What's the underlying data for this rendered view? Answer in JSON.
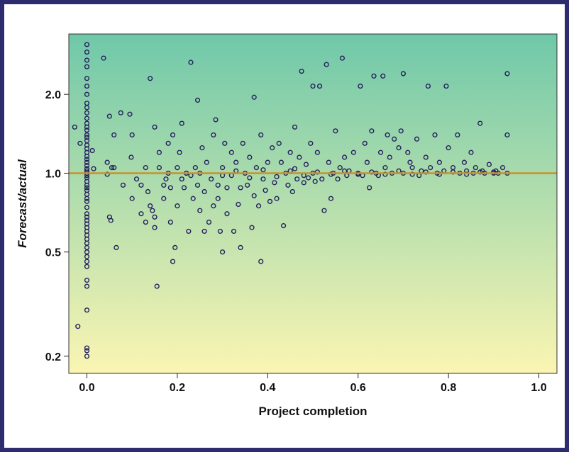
{
  "chart_data": {
    "type": "scatter",
    "xlabel": "Project completion",
    "ylabel": "Forecast/actual",
    "xlim": [
      -0.04,
      1.04
    ],
    "ylim": [
      0.172,
      3.4
    ],
    "y_scale": "log",
    "x_ticks": [
      0.0,
      0.2,
      0.4,
      0.6,
      0.8,
      1.0
    ],
    "x_tick_labels": [
      "0.0",
      "0.2",
      "0.4",
      "0.6",
      "0.8",
      "1.0"
    ],
    "y_ticks": [
      0.2,
      0.5,
      1.0,
      2.0
    ],
    "y_tick_labels": [
      "0.2",
      "0.5",
      "1.0",
      "2.0"
    ],
    "reference_line": {
      "y": 1.0,
      "color": "#c8912e"
    },
    "background_gradient": {
      "top": "#6fc8a9",
      "bottom": "#fbf5b2"
    },
    "frame_color": "#2e2b6e",
    "marker_color": "#25215e",
    "grid": false,
    "series": [
      {
        "points": [
          [
            0.0,
            0.2
          ],
          [
            0.0,
            0.21
          ],
          [
            0.0,
            0.215
          ],
          [
            -0.02,
            0.26
          ],
          [
            0.0,
            0.3
          ],
          [
            0.0,
            0.37
          ],
          [
            0.0,
            0.39
          ],
          [
            0.0,
            0.44
          ],
          [
            0.0,
            0.46
          ],
          [
            0.0,
            0.48
          ],
          [
            0.0,
            0.5
          ],
          [
            0.0,
            0.52
          ],
          [
            0.0,
            0.54
          ],
          [
            0.0,
            0.56
          ],
          [
            0.0,
            0.58
          ],
          [
            0.0,
            0.6
          ],
          [
            0.0,
            0.62
          ],
          [
            0.0,
            0.64
          ],
          [
            0.0,
            0.66
          ],
          [
            0.0,
            0.68
          ],
          [
            0.0,
            0.7
          ],
          [
            0.0,
            0.74
          ],
          [
            0.0,
            0.78
          ],
          [
            0.0,
            0.8
          ],
          [
            0.0,
            0.83
          ],
          [
            0.0,
            0.86
          ],
          [
            0.0,
            0.88
          ],
          [
            0.0,
            0.9
          ],
          [
            0.0,
            0.93
          ],
          [
            0.0,
            0.96
          ],
          [
            0.0,
            0.98
          ],
          [
            0.0,
            1.0
          ],
          [
            0.0,
            1.02
          ],
          [
            0.0,
            1.04
          ],
          [
            0.0,
            1.07
          ],
          [
            0.0,
            1.1
          ],
          [
            0.0,
            1.13
          ],
          [
            0.0,
            1.16
          ],
          [
            0.0,
            1.2
          ],
          [
            0.0,
            1.24
          ],
          [
            0.0,
            1.28
          ],
          [
            0.0,
            1.33
          ],
          [
            0.0,
            1.4
          ],
          [
            0.0,
            1.46
          ],
          [
            0.0,
            1.5
          ],
          [
            0.0,
            1.55
          ],
          [
            0.0,
            1.62
          ],
          [
            0.0,
            1.7
          ],
          [
            0.0,
            1.78
          ],
          [
            0.0,
            1.85
          ],
          [
            0.0,
            2.0
          ],
          [
            0.0,
            2.15
          ],
          [
            0.0,
            2.3
          ],
          [
            0.0,
            2.55
          ],
          [
            0.0,
            2.7
          ],
          [
            0.0,
            2.9
          ],
          [
            0.0,
            3.1
          ],
          [
            -0.027,
            1.5
          ],
          [
            -0.015,
            1.3
          ],
          [
            0.0,
            1.37
          ],
          [
            0.012,
            1.22
          ],
          [
            0.015,
            1.04
          ],
          [
            0.037,
            2.75
          ],
          [
            0.045,
            1.1
          ],
          [
            0.045,
            0.99
          ],
          [
            0.05,
            0.68
          ],
          [
            0.053,
            0.66
          ],
          [
            0.055,
            1.05
          ],
          [
            0.05,
            1.65
          ],
          [
            0.06,
            1.05
          ],
          [
            0.06,
            1.4
          ],
          [
            0.065,
            0.52
          ],
          [
            0.075,
            1.7
          ],
          [
            0.08,
            0.9
          ],
          [
            0.095,
            1.68
          ],
          [
            0.098,
            1.15
          ],
          [
            0.1,
            1.4
          ],
          [
            0.1,
            0.8
          ],
          [
            0.11,
            0.95
          ],
          [
            0.12,
            0.7
          ],
          [
            0.12,
            0.9
          ],
          [
            0.13,
            0.65
          ],
          [
            0.13,
            1.05
          ],
          [
            0.135,
            0.85
          ],
          [
            0.14,
            2.3
          ],
          [
            0.14,
            0.75
          ],
          [
            0.145,
            0.72
          ],
          [
            0.15,
            0.62
          ],
          [
            0.15,
            0.68
          ],
          [
            0.155,
            0.37
          ],
          [
            0.15,
            1.5
          ],
          [
            0.16,
            1.2
          ],
          [
            0.16,
            1.05
          ],
          [
            0.17,
            0.8
          ],
          [
            0.17,
            0.9
          ],
          [
            0.175,
            0.95
          ],
          [
            0.18,
            1.3
          ],
          [
            0.18,
            1.0
          ],
          [
            0.185,
            0.65
          ],
          [
            0.185,
            0.88
          ],
          [
            0.19,
            0.46
          ],
          [
            0.19,
            1.4
          ],
          [
            0.195,
            0.52
          ],
          [
            0.2,
            1.05
          ],
          [
            0.2,
            0.75
          ],
          [
            0.205,
            1.2
          ],
          [
            0.21,
            0.95
          ],
          [
            0.21,
            1.55
          ],
          [
            0.215,
            0.88
          ],
          [
            0.22,
            1.0
          ],
          [
            0.225,
            0.6
          ],
          [
            0.23,
            2.65
          ],
          [
            0.23,
            0.98
          ],
          [
            0.235,
            0.8
          ],
          [
            0.24,
            1.05
          ],
          [
            0.245,
            0.9
          ],
          [
            0.245,
            1.9
          ],
          [
            0.25,
            0.72
          ],
          [
            0.255,
            1.25
          ],
          [
            0.26,
            0.6
          ],
          [
            0.26,
            0.85
          ],
          [
            0.265,
            1.1
          ],
          [
            0.27,
            0.65
          ],
          [
            0.275,
            0.95
          ],
          [
            0.28,
            0.75
          ],
          [
            0.28,
            1.4
          ],
          [
            0.285,
            1.6
          ],
          [
            0.29,
            0.8
          ],
          [
            0.29,
            0.9
          ],
          [
            0.295,
            0.6
          ],
          [
            0.3,
            1.05
          ],
          [
            0.3,
            0.5
          ],
          [
            0.305,
            1.3
          ],
          [
            0.31,
            0.7
          ],
          [
            0.31,
            0.88
          ],
          [
            0.32,
            1.2
          ],
          [
            0.32,
            0.98
          ],
          [
            0.325,
            0.6
          ],
          [
            0.33,
            1.1
          ],
          [
            0.335,
            0.76
          ],
          [
            0.34,
            0.52
          ],
          [
            0.34,
            0.88
          ],
          [
            0.345,
            1.3
          ],
          [
            0.35,
            1.0
          ],
          [
            0.355,
            0.9
          ],
          [
            0.36,
            1.15
          ],
          [
            0.365,
            0.62
          ],
          [
            0.37,
            1.95
          ],
          [
            0.37,
            0.82
          ],
          [
            0.375,
            1.05
          ],
          [
            0.38,
            0.75
          ],
          [
            0.385,
            0.46
          ],
          [
            0.385,
            1.4
          ],
          [
            0.39,
            0.95
          ],
          [
            0.395,
            0.86
          ],
          [
            0.4,
            1.1
          ],
          [
            0.405,
            0.78
          ],
          [
            0.41,
            1.25
          ],
          [
            0.415,
            0.92
          ],
          [
            0.42,
            0.8
          ],
          [
            0.425,
            1.3
          ],
          [
            0.43,
            1.1
          ],
          [
            0.435,
            0.63
          ],
          [
            0.44,
            1.0
          ],
          [
            0.445,
            0.9
          ],
          [
            0.45,
            1.2
          ],
          [
            0.455,
            0.85
          ],
          [
            0.46,
            1.5
          ],
          [
            0.46,
            1.04
          ],
          [
            0.465,
            0.95
          ],
          [
            0.47,
            1.15
          ],
          [
            0.475,
            2.45
          ],
          [
            0.48,
            0.92
          ],
          [
            0.485,
            1.08
          ],
          [
            0.49,
            0.96
          ],
          [
            0.495,
            1.3
          ],
          [
            0.5,
            2.15
          ],
          [
            0.5,
            1.0
          ],
          [
            0.505,
            0.93
          ],
          [
            0.51,
            1.2
          ],
          [
            0.515,
            2.15
          ],
          [
            0.52,
            0.95
          ],
          [
            0.525,
            0.72
          ],
          [
            0.53,
            2.6
          ],
          [
            0.535,
            1.1
          ],
          [
            0.54,
            0.8
          ],
          [
            0.545,
            1.0
          ],
          [
            0.55,
            1.45
          ],
          [
            0.555,
            0.95
          ],
          [
            0.56,
            1.05
          ],
          [
            0.565,
            2.75
          ],
          [
            0.57,
            1.15
          ],
          [
            0.575,
            0.98
          ],
          [
            0.58,
            1.02
          ],
          [
            0.59,
            1.2
          ],
          [
            0.6,
            1.0
          ],
          [
            0.605,
            2.15
          ],
          [
            0.61,
            0.98
          ],
          [
            0.615,
            1.3
          ],
          [
            0.62,
            1.1
          ],
          [
            0.625,
            0.88
          ],
          [
            0.63,
            1.45
          ],
          [
            0.635,
            2.35
          ],
          [
            0.64,
            1.0
          ],
          [
            0.645,
            0.98
          ],
          [
            0.65,
            1.2
          ],
          [
            0.655,
            2.35
          ],
          [
            0.66,
            1.05
          ],
          [
            0.665,
            1.4
          ],
          [
            0.67,
            1.15
          ],
          [
            0.675,
            1.0
          ],
          [
            0.68,
            1.35
          ],
          [
            0.69,
            1.25
          ],
          [
            0.695,
            1.45
          ],
          [
            0.7,
            2.4
          ],
          [
            0.7,
            1.0
          ],
          [
            0.71,
            1.2
          ],
          [
            0.715,
            1.1
          ],
          [
            0.72,
            1.05
          ],
          [
            0.73,
            1.35
          ],
          [
            0.735,
            0.98
          ],
          [
            0.74,
            1.02
          ],
          [
            0.75,
            1.15
          ],
          [
            0.755,
            2.15
          ],
          [
            0.76,
            1.05
          ],
          [
            0.77,
            1.4
          ],
          [
            0.775,
            1.0
          ],
          [
            0.78,
            1.1
          ],
          [
            0.79,
            1.02
          ],
          [
            0.795,
            2.15
          ],
          [
            0.8,
            1.25
          ],
          [
            0.81,
            1.05
          ],
          [
            0.82,
            1.4
          ],
          [
            0.825,
            1.0
          ],
          [
            0.835,
            1.1
          ],
          [
            0.84,
            1.02
          ],
          [
            0.85,
            1.2
          ],
          [
            0.855,
            1.0
          ],
          [
            0.86,
            1.05
          ],
          [
            0.87,
            1.55
          ],
          [
            0.875,
            1.02
          ],
          [
            0.88,
            1.0
          ],
          [
            0.89,
            1.08
          ],
          [
            0.9,
            1.0
          ],
          [
            0.905,
            1.02
          ],
          [
            0.91,
            1.0
          ],
          [
            0.92,
            1.05
          ],
          [
            0.93,
            1.4
          ],
          [
            0.93,
            2.4
          ],
          [
            0.93,
            1.0
          ],
          [
            0.22,
            1.0
          ],
          [
            0.25,
            1.0
          ],
          [
            0.3,
            0.98
          ],
          [
            0.33,
            1.02
          ],
          [
            0.36,
            0.96
          ],
          [
            0.39,
            1.03
          ],
          [
            0.42,
            0.97
          ],
          [
            0.45,
            1.02
          ],
          [
            0.48,
            0.98
          ],
          [
            0.51,
            1.01
          ],
          [
            0.54,
            0.99
          ],
          [
            0.57,
            1.02
          ],
          [
            0.6,
            0.99
          ],
          [
            0.63,
            1.01
          ],
          [
            0.66,
            0.99
          ],
          [
            0.69,
            1.02
          ],
          [
            0.72,
            0.99
          ],
          [
            0.75,
            1.01
          ],
          [
            0.78,
            0.99
          ],
          [
            0.81,
            1.01
          ],
          [
            0.84,
            0.99
          ],
          [
            0.87,
            1.01
          ],
          [
            0.9,
            1.01
          ]
        ]
      }
    ]
  }
}
